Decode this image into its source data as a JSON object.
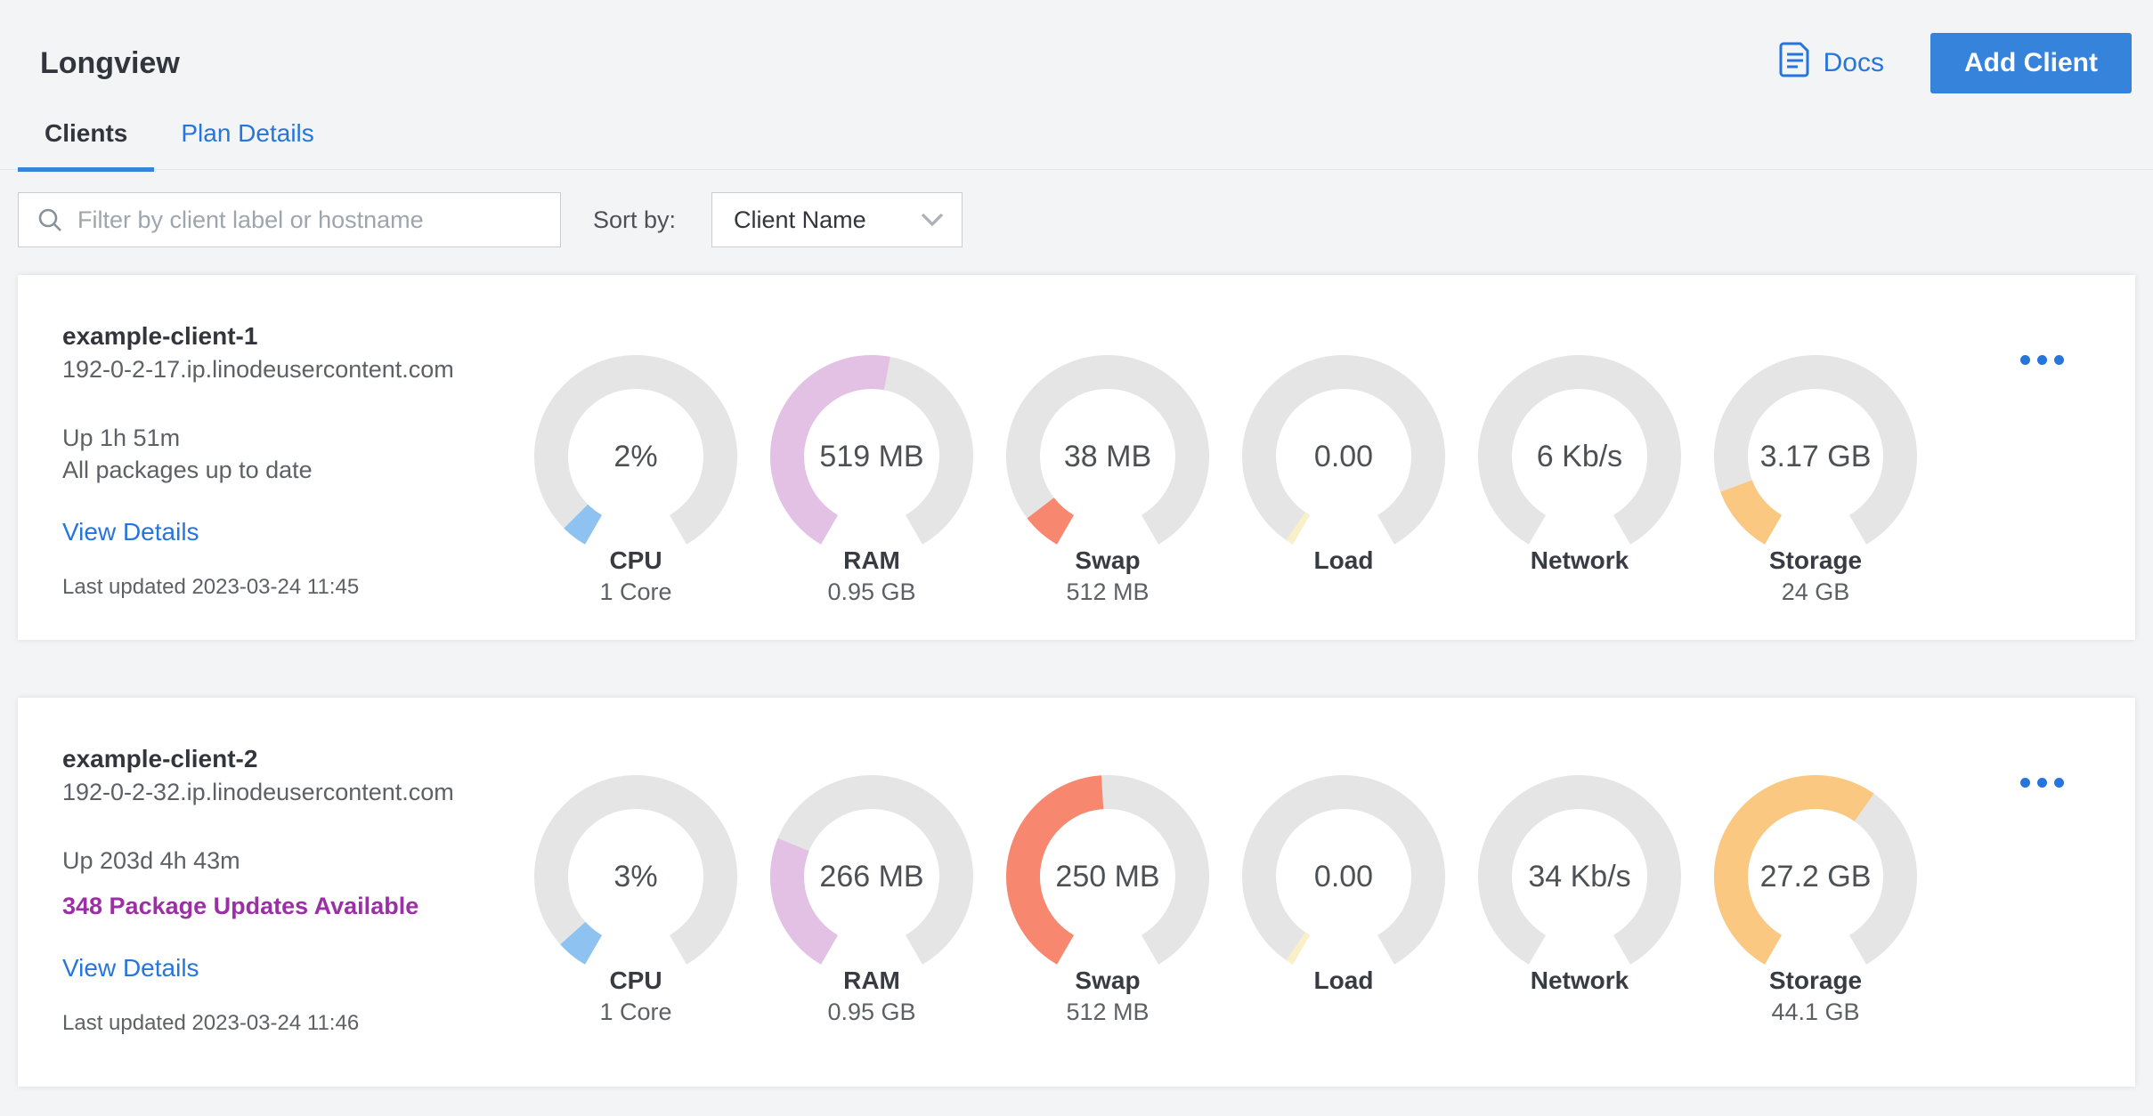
{
  "page": {
    "title": "Longview"
  },
  "header": {
    "docs_label": "Docs",
    "add_client_label": "Add Client"
  },
  "tabs": [
    {
      "label": "Clients",
      "active": true
    },
    {
      "label": "Plan Details",
      "active": false
    }
  ],
  "toolbar": {
    "filter_placeholder": "Filter by client label or hostname",
    "sort_by_label": "Sort by:",
    "sort_value": "Client Name"
  },
  "colors": {
    "accent_blue": "#3683dc",
    "link_blue": "#2575dc",
    "purple_link": "#9b2fa5",
    "gauge_track": "#e5e5e5",
    "page_background": "#f3f4f6"
  },
  "icons": {
    "docs": "document-icon",
    "search": "search-icon",
    "sort": "chevron-down-icon",
    "card_menu": "ellipsis-icon"
  },
  "clients": [
    {
      "name": "example-client-1",
      "hostname": "192-0-2-17.ip.linodeusercontent.com",
      "uptime": "Up 1h 51m",
      "packages": "All packages up to date",
      "view_details_label": "View Details",
      "last_updated": "Last updated 2023-03-24 11:45",
      "gauges": [
        {
          "label": "CPU",
          "value": "2%",
          "sublabel": "1 Core",
          "color": "#8ec3f1",
          "fraction": 0.05
        },
        {
          "label": "RAM",
          "value": "519 MB",
          "sublabel": "0.95 GB",
          "color": "#e3c1e5",
          "fraction": 0.535
        },
        {
          "label": "Swap",
          "value": "38 MB",
          "sublabel": "512 MB",
          "color": "#f8876f",
          "fraction": 0.075
        },
        {
          "label": "Load",
          "value": "0.00",
          "sublabel": "",
          "color": "#faf0c8",
          "fraction": 0.015
        },
        {
          "label": "Network",
          "value": "6 Kb/s",
          "sublabel": "",
          "color": "#f8d083",
          "fraction": 0
        },
        {
          "label": "Storage",
          "value": "3.17 GB",
          "sublabel": "24 GB",
          "color": "#fbc882",
          "fraction": 0.132
        }
      ]
    },
    {
      "name": "example-client-2",
      "hostname": "192-0-2-32.ip.linodeusercontent.com",
      "uptime": "Up 203d 4h 43m",
      "packages": "348 Package Updates Available",
      "view_details_label": "View Details",
      "last_updated": "Last updated 2023-03-24 11:46",
      "gauges": [
        {
          "label": "CPU",
          "value": "3%",
          "sublabel": "1 Core",
          "color": "#8ec3f1",
          "fraction": 0.06
        },
        {
          "label": "RAM",
          "value": "266 MB",
          "sublabel": "0.95 GB",
          "color": "#e3c1e5",
          "fraction": 0.274
        },
        {
          "label": "Swap",
          "value": "250 MB",
          "sublabel": "512 MB",
          "color": "#f8876f",
          "fraction": 0.488
        },
        {
          "label": "Load",
          "value": "0.00",
          "sublabel": "",
          "color": "#faf0c8",
          "fraction": 0.015
        },
        {
          "label": "Network",
          "value": "34 Kb/s",
          "sublabel": "",
          "color": "#f8d083",
          "fraction": 0
        },
        {
          "label": "Storage",
          "value": "27.2 GB",
          "sublabel": "44.1 GB",
          "color": "#fbc882",
          "fraction": 0.617
        }
      ]
    }
  ]
}
